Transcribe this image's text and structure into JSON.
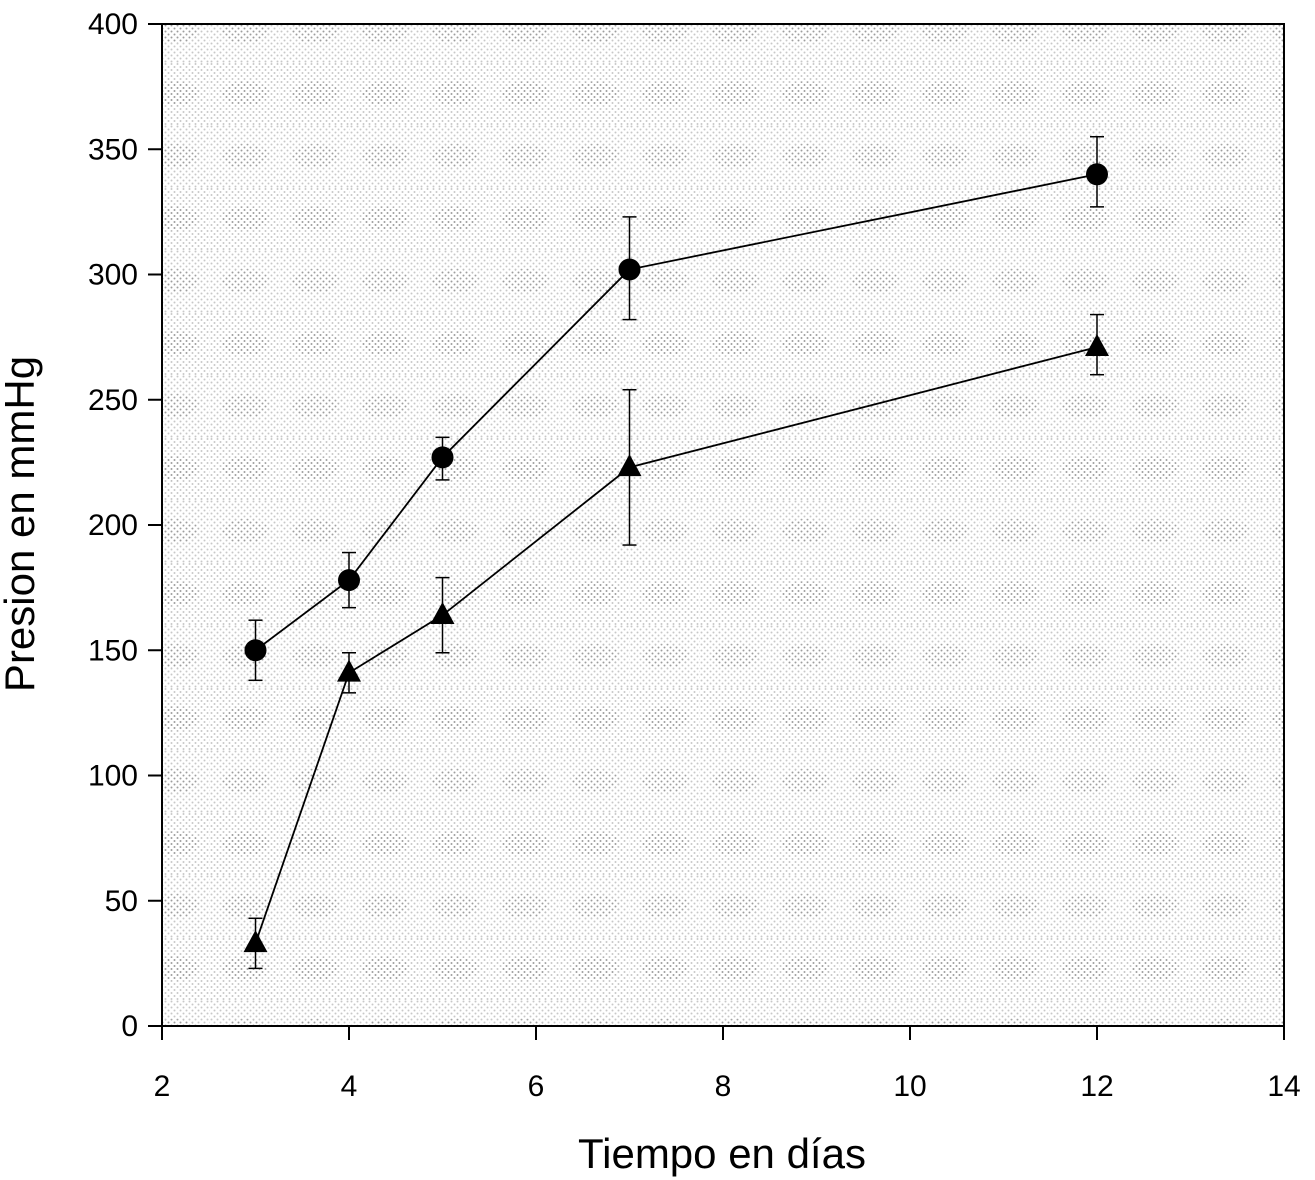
{
  "chart_data": {
    "type": "scatter",
    "xlabel": "Tiempo en días",
    "ylabel": "Presion en mmHg",
    "xlim": [
      2,
      14
    ],
    "ylim": [
      0,
      400
    ],
    "xticks": [
      2,
      4,
      6,
      8,
      10,
      12,
      14
    ],
    "yticks": [
      0,
      50,
      100,
      150,
      200,
      250,
      300,
      350,
      400
    ],
    "grid": false,
    "series": [
      {
        "marker": "circle",
        "points": [
          {
            "x": 3,
            "y": 150,
            "err_low": 138,
            "err_high": 162
          },
          {
            "x": 4,
            "y": 178,
            "err_low": 167,
            "err_high": 189
          },
          {
            "x": 5,
            "y": 227,
            "err_low": 218,
            "err_high": 235
          },
          {
            "x": 7,
            "y": 302,
            "err_low": 282,
            "err_high": 323
          },
          {
            "x": 12,
            "y": 340,
            "err_low": 327,
            "err_high": 355
          }
        ]
      },
      {
        "marker": "triangle",
        "points": [
          {
            "x": 3,
            "y": 33,
            "err_low": 23,
            "err_high": 43
          },
          {
            "x": 4,
            "y": 141,
            "err_low": 133,
            "err_high": 149
          },
          {
            "x": 5,
            "y": 164,
            "err_low": 149,
            "err_high": 179
          },
          {
            "x": 7,
            "y": 223,
            "err_low": 192,
            "err_high": 254
          },
          {
            "x": 12,
            "y": 271,
            "err_low": 260,
            "err_high": 284
          }
        ]
      }
    ]
  }
}
